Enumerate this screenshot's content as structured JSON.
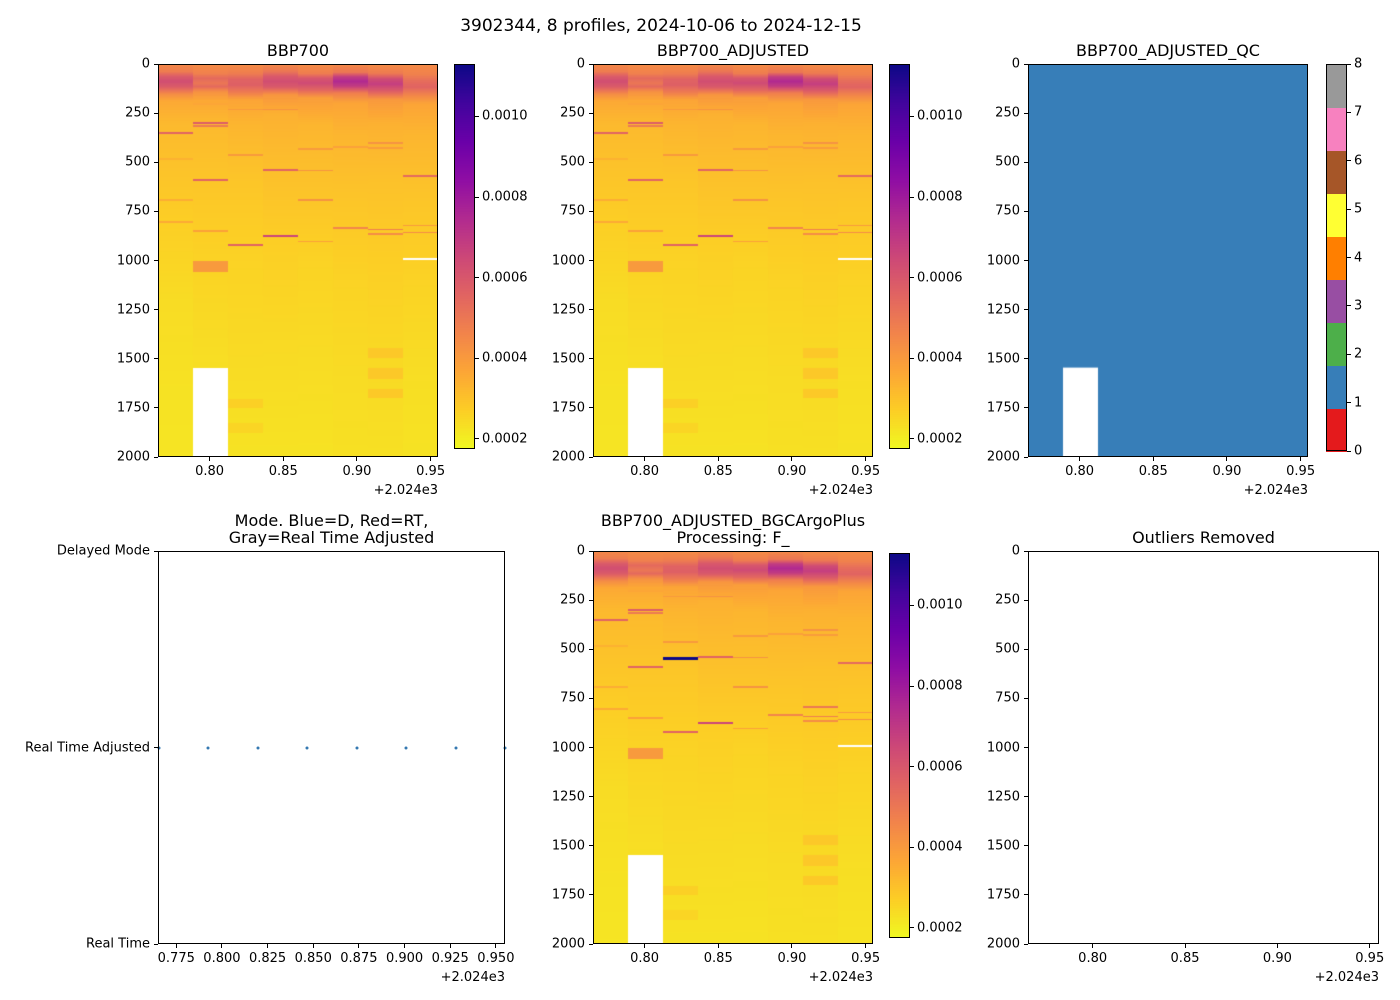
{
  "suptitle": "3902344, 8 profiles, 2024-10-06 to 2024-12-15",
  "palette": {
    "plasma_stops": [
      "#0d0887",
      "#41049d",
      "#6a00a8",
      "#8f0da4",
      "#b12a90",
      "#cc4778",
      "#e16462",
      "#f2844b",
      "#fca636",
      "#fcce25",
      "#f0f921"
    ],
    "qc_colors": [
      "#e41a1c",
      "#377eb8",
      "#4daf4a",
      "#984ea3",
      "#ff7f00",
      "#ffff33",
      "#a65628",
      "#f781bf",
      "#999999"
    ],
    "qc_fill": "#377eb8",
    "mode_dot_color": "#3579b1",
    "missing_color": "#ffffff"
  },
  "bbp_profiles": {
    "times": [
      2024.7655,
      2024.7926,
      2024.8197,
      2024.8467,
      2024.8738,
      2024.9009,
      2024.928,
      2024.955
    ],
    "vmin": 0.000175,
    "vmax": 0.00113,
    "depth_range": [
      0,
      2000
    ],
    "x_range": [
      2024.765,
      2024.955
    ],
    "profiles": [
      {
        "points": [
          [
            0,
            0.00045
          ],
          [
            35,
            0.00048
          ],
          [
            60,
            0.00058
          ],
          [
            85,
            0.00063
          ],
          [
            115,
            0.00058
          ],
          [
            150,
            0.00044
          ],
          [
            185,
            0.00036
          ],
          [
            300,
            0.00032
          ],
          [
            500,
            0.0003
          ],
          [
            800,
            0.00027
          ],
          [
            1200,
            0.00024
          ],
          [
            1700,
            0.000225
          ],
          [
            2000,
            0.00022
          ]
        ],
        "streaks": [
          [
            350,
            0.00056,
            6
          ],
          [
            480,
            0.00034,
            5
          ],
          [
            690,
            0.00035,
            5
          ],
          [
            800,
            0.00036,
            5
          ]
        ]
      },
      {
        "points": [
          [
            0,
            0.00044
          ],
          [
            45,
            0.00047
          ],
          [
            70,
            0.00054
          ],
          [
            95,
            0.0005
          ],
          [
            112,
            0.00054
          ],
          [
            140,
            0.00042
          ],
          [
            185,
            0.00036
          ],
          [
            300,
            0.00032
          ],
          [
            600,
            0.00029
          ],
          [
            1000,
            0.00026
          ],
          [
            1500,
            0.000235
          ],
          [
            2000,
            0.000225
          ]
        ],
        "streaks": [
          [
            200,
            0.00037,
            6
          ],
          [
            298,
            0.00058,
            5
          ],
          [
            312,
            0.00049,
            4
          ],
          [
            590,
            0.00056,
            5
          ],
          [
            845,
            0.00038,
            5
          ],
          [
            1028,
            0.0004,
            28
          ]
        ]
      },
      {
        "points": [
          [
            0,
            0.00044
          ],
          [
            45,
            0.00048
          ],
          [
            75,
            0.00056
          ],
          [
            105,
            0.00057
          ],
          [
            140,
            0.00049
          ],
          [
            180,
            0.00037
          ],
          [
            300,
            0.00033
          ],
          [
            600,
            0.00029
          ],
          [
            1000,
            0.00026
          ],
          [
            1700,
            0.000235
          ],
          [
            2000,
            0.000225
          ]
        ],
        "streaks": [
          [
            230,
            0.0004,
            4
          ],
          [
            460,
            0.0004,
            4
          ],
          [
            920,
            0.00056,
            5
          ],
          [
            1725,
            0.000265,
            22
          ],
          [
            1850,
            0.000255,
            25
          ]
        ]
      },
      {
        "points": [
          [
            0,
            0.00045
          ],
          [
            35,
            0.0005
          ],
          [
            60,
            0.00059
          ],
          [
            85,
            0.00063
          ],
          [
            115,
            0.00059
          ],
          [
            155,
            0.00041
          ],
          [
            250,
            0.00034
          ],
          [
            500,
            0.00031
          ],
          [
            900,
            0.00027
          ],
          [
            1400,
            0.000245
          ],
          [
            2000,
            0.000225
          ]
        ],
        "streaks": [
          [
            230,
            0.00042,
            4
          ],
          [
            535,
            0.00056,
            5
          ],
          [
            875,
            0.00066,
            5
          ]
        ]
      },
      {
        "points": [
          [
            0,
            0.00044
          ],
          [
            45,
            0.00048
          ],
          [
            70,
            0.0006
          ],
          [
            95,
            0.00064
          ],
          [
            130,
            0.00055
          ],
          [
            170,
            0.00039
          ],
          [
            300,
            0.00033
          ],
          [
            600,
            0.0003
          ],
          [
            1000,
            0.00026
          ],
          [
            1500,
            0.00024
          ],
          [
            2000,
            0.000225
          ]
        ],
        "streaks": [
          [
            430,
            0.0004,
            4
          ],
          [
            540,
            0.00042,
            4
          ],
          [
            690,
            0.00042,
            4
          ],
          [
            900,
            0.00038,
            4
          ]
        ]
      },
      {
        "points": [
          [
            0,
            0.00045
          ],
          [
            40,
            0.0005
          ],
          [
            62,
            0.00068
          ],
          [
            85,
            0.00075
          ],
          [
            110,
            0.00069
          ],
          [
            145,
            0.00048
          ],
          [
            195,
            0.00037
          ],
          [
            350,
            0.00033
          ],
          [
            700,
            0.00029
          ],
          [
            1100,
            0.00026
          ],
          [
            1600,
            0.00024
          ],
          [
            2000,
            0.00023
          ]
        ],
        "streaks": [
          [
            420,
            0.00038,
            4
          ],
          [
            830,
            0.00046,
            5
          ]
        ]
      },
      {
        "points": [
          [
            0,
            0.00044
          ],
          [
            45,
            0.00049
          ],
          [
            75,
            0.00064
          ],
          [
            100,
            0.00068
          ],
          [
            135,
            0.00058
          ],
          [
            180,
            0.0004
          ],
          [
            300,
            0.00034
          ],
          [
            600,
            0.0003
          ],
          [
            1000,
            0.00027
          ],
          [
            1400,
            0.00025
          ],
          [
            2000,
            0.00023
          ]
        ],
        "streaks": [
          [
            400,
            0.00042,
            4
          ],
          [
            425,
            0.00039,
            4
          ],
          [
            840,
            0.00048,
            4
          ],
          [
            862,
            0.00044,
            4
          ],
          [
            1470,
            0.000285,
            26
          ],
          [
            1572,
            0.000285,
            28
          ],
          [
            1672,
            0.000282,
            23
          ]
        ]
      },
      {
        "points": [
          [
            0,
            0.00044
          ],
          [
            50,
            0.00047
          ],
          [
            85,
            0.00053
          ],
          [
            115,
            0.00056
          ],
          [
            150,
            0.00047
          ],
          [
            200,
            0.00037
          ],
          [
            350,
            0.00033
          ],
          [
            700,
            0.00029
          ],
          [
            1100,
            0.00026
          ],
          [
            1600,
            0.000235
          ],
          [
            2000,
            0.000225
          ]
        ],
        "streaks": [
          [
            565,
            0.00054,
            5
          ],
          [
            820,
            0.0004,
            4
          ],
          [
            855,
            0.00044,
            4
          ]
        ]
      }
    ],
    "missing_block": {
      "profile_index": 1,
      "depth": [
        1545,
        2000
      ]
    },
    "white_line": {
      "profile_index": 7,
      "depth": [
        985,
        996
      ]
    }
  },
  "chart_data": [
    {
      "id": "bbp700",
      "type": "heatmap",
      "title": "BBP700",
      "profiles_ref": "bbp_profiles",
      "xticks": {
        "labels": [
          "0.80",
          "0.85",
          "0.90",
          "0.95"
        ],
        "values": [
          2024.8,
          2024.85,
          2024.9,
          2024.95
        ],
        "offset": "+2.024e3"
      },
      "yticks": {
        "labels": [
          "0",
          "250",
          "500",
          "750",
          "1000",
          "1250",
          "1500",
          "1750",
          "2000"
        ],
        "values": [
          0,
          250,
          500,
          750,
          1000,
          1250,
          1500,
          1750,
          2000
        ]
      },
      "colorbar": {
        "kind": "continuous",
        "tick_labels": [
          "0.0010",
          "0.0008",
          "0.0006",
          "0.0004",
          "0.0002"
        ],
        "tick_values": [
          0.001,
          0.0008,
          0.0006,
          0.0004,
          0.0002
        ]
      }
    },
    {
      "id": "bbp700_adjusted",
      "type": "heatmap",
      "title": "BBP700_ADJUSTED",
      "profiles_ref": "bbp_profiles",
      "xticks": {
        "labels": [
          "0.80",
          "0.85",
          "0.90",
          "0.95"
        ],
        "values": [
          2024.8,
          2024.85,
          2024.9,
          2024.95
        ],
        "offset": "+2.024e3"
      },
      "yticks": {
        "labels": [
          "0",
          "250",
          "500",
          "750",
          "1000",
          "1250",
          "1500",
          "1750",
          "2000"
        ],
        "values": [
          0,
          250,
          500,
          750,
          1000,
          1250,
          1500,
          1750,
          2000
        ]
      },
      "colorbar": {
        "kind": "continuous",
        "tick_labels": [
          "0.0010",
          "0.0008",
          "0.0006",
          "0.0004",
          "0.0002"
        ],
        "tick_values": [
          0.001,
          0.0008,
          0.0006,
          0.0004,
          0.0002
        ]
      }
    },
    {
      "id": "bbp700_adjusted_qc",
      "type": "qc",
      "title": "BBP700_ADJUSTED_QC",
      "qc_value": 1,
      "xticks": {
        "labels": [
          "0.80",
          "0.85",
          "0.90",
          "0.95"
        ],
        "values": [
          2024.8,
          2024.85,
          2024.9,
          2024.95
        ],
        "offset": "+2.024e3"
      },
      "yticks": {
        "labels": [
          "0",
          "250",
          "500",
          "750",
          "1000",
          "1250",
          "1500",
          "1750",
          "2000"
        ],
        "values": [
          0,
          250,
          500,
          750,
          1000,
          1250,
          1500,
          1750,
          2000
        ]
      },
      "colorbar": {
        "kind": "discrete",
        "tick_labels": [
          "0",
          "1",
          "2",
          "3",
          "4",
          "5",
          "6",
          "7",
          "8"
        ],
        "tick_values": [
          0,
          1,
          2,
          3,
          4,
          5,
          6,
          7,
          8
        ]
      }
    },
    {
      "id": "mode",
      "type": "scatter",
      "title": "Mode. Blue=D, Red=RT,\nGray=Real Time Adjusted",
      "y_categories": [
        "Real Time",
        "Real Time Adjusted",
        "Delayed Mode"
      ],
      "points_x": [
        2024.7655,
        2024.7926,
        2024.8197,
        2024.8467,
        2024.8738,
        2024.9009,
        2024.928,
        2024.955
      ],
      "points_y": "Real Time Adjusted",
      "xticks": {
        "labels": [
          "0.775",
          "0.800",
          "0.825",
          "0.850",
          "0.875",
          "0.900",
          "0.925",
          "0.950"
        ],
        "values": [
          2024.775,
          2024.8,
          2024.825,
          2024.85,
          2024.875,
          2024.9,
          2024.925,
          2024.95
        ],
        "offset": "+2.024e3"
      },
      "yticks": {
        "labels": [
          "Delayed Mode",
          "Real Time Adjusted",
          "Real Time"
        ],
        "values": [
          2,
          1,
          0
        ]
      }
    },
    {
      "id": "bgc",
      "type": "heatmap",
      "title": "BBP700_ADJUSTED_BGCArgoPlus\nProcessing: F_",
      "profiles_ref": "bbp_profiles",
      "extra_streaks": [
        {
          "profile_index": 2,
          "streak": [
            545,
            0.00115,
            7
          ]
        },
        {
          "profile_index": 6,
          "streak": [
            790,
            0.0005,
            4
          ]
        }
      ],
      "xticks": {
        "labels": [
          "0.80",
          "0.85",
          "0.90",
          "0.95"
        ],
        "values": [
          2024.8,
          2024.85,
          2024.9,
          2024.95
        ],
        "offset": "+2.024e3"
      },
      "yticks": {
        "labels": [
          "0",
          "250",
          "500",
          "750",
          "1000",
          "1250",
          "1500",
          "1750",
          "2000"
        ],
        "values": [
          0,
          250,
          500,
          750,
          1000,
          1250,
          1500,
          1750,
          2000
        ]
      },
      "colorbar": {
        "kind": "continuous",
        "tick_labels": [
          "0.0010",
          "0.0008",
          "0.0006",
          "0.0004",
          "0.0002"
        ],
        "tick_values": [
          0.001,
          0.0008,
          0.0006,
          0.0004,
          0.0002
        ]
      }
    },
    {
      "id": "outliers",
      "type": "empty",
      "title": "Outliers Removed",
      "xticks": {
        "labels": [
          "0.80",
          "0.85",
          "0.90",
          "0.95"
        ],
        "values": [
          2024.8,
          2024.85,
          2024.9,
          2024.95
        ],
        "offset": "+2.024e3"
      },
      "yticks": {
        "labels": [
          "0",
          "250",
          "500",
          "750",
          "1000",
          "1250",
          "1500",
          "1750",
          "2000"
        ],
        "values": [
          0,
          250,
          500,
          750,
          1000,
          1250,
          1500,
          1750,
          2000
        ]
      }
    }
  ]
}
